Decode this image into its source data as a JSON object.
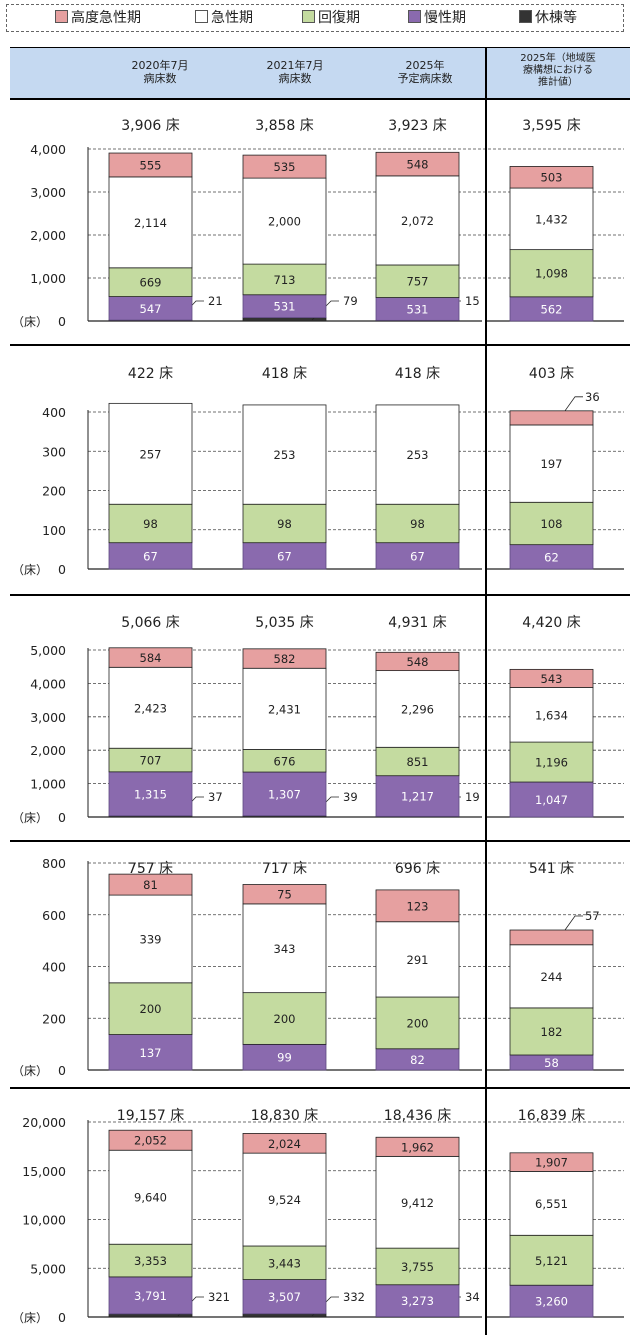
{
  "legend": [
    {
      "label": "高度急性期",
      "color": "#e6a0a0"
    },
    {
      "label": "急性期",
      "color": "#ffffff"
    },
    {
      "label": "回復期",
      "color": "#c4dba0"
    },
    {
      "label": "慢性期",
      "color": "#8a6aae"
    },
    {
      "label": "休棟等",
      "color": "#333333"
    }
  ],
  "header": {
    "col1": [
      "2020年7月",
      "病床数"
    ],
    "col2": [
      "2021年7月",
      "病床数"
    ],
    "col3": [
      "2025年",
      "予定病床数"
    ],
    "col4": [
      "2025年（地域医",
      "療構想における",
      "推計値）"
    ]
  },
  "unit_label": "（床）",
  "total_suffix": "床",
  "chart_data": [
    {
      "type": "bar",
      "stacked": true,
      "categories": [
        "2020年7月病床数",
        "2021年7月病床数",
        "2025年予定病床数",
        "2025年（地域医療構想における推計値）"
      ],
      "series": [
        {
          "name": "休棟等",
          "values": [
            21,
            79,
            15,
            0
          ]
        },
        {
          "name": "慢性期",
          "values": [
            547,
            531,
            531,
            562
          ]
        },
        {
          "name": "回復期",
          "values": [
            669,
            713,
            757,
            1098
          ]
        },
        {
          "name": "急性期",
          "values": [
            2114,
            2000,
            2072,
            1432
          ]
        },
        {
          "name": "高度急性期",
          "values": [
            555,
            535,
            548,
            503
          ]
        }
      ],
      "totals": [
        "3,906",
        "3,858",
        "3,923",
        "3,595"
      ],
      "yticks": [
        0,
        1000,
        2000,
        3000,
        4000
      ],
      "ytick_labels": [
        "0",
        "1,000",
        "2,000",
        "3,000",
        "4,000"
      ],
      "ylim": [
        0,
        4000
      ]
    },
    {
      "type": "bar",
      "stacked": true,
      "categories": [
        "2020年7月病床数",
        "2021年7月病床数",
        "2025年予定病床数",
        "2025年（地域医療構想における推計値）"
      ],
      "series": [
        {
          "name": "休棟等",
          "values": [
            0,
            0,
            0,
            0
          ]
        },
        {
          "name": "慢性期",
          "values": [
            67,
            67,
            67,
            62
          ]
        },
        {
          "name": "回復期",
          "values": [
            98,
            98,
            98,
            108
          ]
        },
        {
          "name": "急性期",
          "values": [
            257,
            253,
            253,
            197
          ]
        },
        {
          "name": "高度急性期",
          "values": [
            0,
            0,
            0,
            36
          ]
        }
      ],
      "totals": [
        "422",
        "418",
        "418",
        "403"
      ],
      "yticks": [
        0,
        100,
        200,
        300,
        400
      ],
      "ytick_labels": [
        "0",
        "100",
        "200",
        "300",
        "400"
      ],
      "ylim": [
        0,
        450
      ]
    },
    {
      "type": "bar",
      "stacked": true,
      "categories": [
        "2020年7月病床数",
        "2021年7月病床数",
        "2025年予定病床数",
        "2025年（地域医療構想における推計値）"
      ],
      "series": [
        {
          "name": "休棟等",
          "values": [
            37,
            39,
            19,
            0
          ]
        },
        {
          "name": "慢性期",
          "values": [
            1315,
            1307,
            1217,
            1047
          ]
        },
        {
          "name": "回復期",
          "values": [
            707,
            676,
            851,
            1196
          ]
        },
        {
          "name": "急性期",
          "values": [
            2423,
            2431,
            2296,
            1634
          ]
        },
        {
          "name": "高度急性期",
          "values": [
            584,
            582,
            548,
            543
          ]
        }
      ],
      "totals": [
        "5,066",
        "5,035",
        "4,931",
        "4,420"
      ],
      "yticks": [
        0,
        1000,
        2000,
        3000,
        4000,
        5000
      ],
      "ytick_labels": [
        "0",
        "1,000",
        "2,000",
        "3,000",
        "4,000",
        "5,000"
      ],
      "ylim": [
        0,
        5000
      ]
    },
    {
      "type": "bar",
      "stacked": true,
      "categories": [
        "2020年7月病床数",
        "2021年7月病床数",
        "2025年予定病床数",
        "2025年（地域医療構想における推計値）"
      ],
      "series": [
        {
          "name": "休棟等",
          "values": [
            0,
            0,
            0,
            0
          ]
        },
        {
          "name": "慢性期",
          "values": [
            137,
            99,
            82,
            58
          ]
        },
        {
          "name": "回復期",
          "values": [
            200,
            200,
            200,
            182
          ]
        },
        {
          "name": "急性期",
          "values": [
            339,
            343,
            291,
            244
          ]
        },
        {
          "name": "高度急性期",
          "values": [
            81,
            75,
            123,
            57
          ]
        }
      ],
      "totals": [
        "757",
        "717",
        "696",
        "541"
      ],
      "yticks": [
        0,
        200,
        400,
        600,
        800
      ],
      "ytick_labels": [
        "0",
        "200",
        "400",
        "600",
        "800"
      ],
      "ylim": [
        0,
        800
      ]
    },
    {
      "type": "bar",
      "stacked": true,
      "categories": [
        "2020年7月病床数",
        "2021年7月病床数",
        "2025年予定病床数",
        "2025年（地域医療構想における推計値）"
      ],
      "series": [
        {
          "name": "休棟等",
          "values": [
            321,
            332,
            34,
            0
          ]
        },
        {
          "name": "慢性期",
          "values": [
            3791,
            3507,
            3273,
            3260
          ]
        },
        {
          "name": "回復期",
          "values": [
            3353,
            3443,
            3755,
            5121
          ]
        },
        {
          "name": "急性期",
          "values": [
            9640,
            9524,
            9412,
            6551
          ]
        },
        {
          "name": "高度急性期",
          "values": [
            2052,
            2024,
            1962,
            1907
          ]
        }
      ],
      "totals": [
        "19,157",
        "18,830",
        "18,436",
        "16,839"
      ],
      "yticks": [
        0,
        5000,
        10000,
        15000,
        20000
      ],
      "ytick_labels": [
        "0",
        "5,000",
        "10,000",
        "15,000",
        "20,000"
      ],
      "ylim": [
        0,
        20000
      ]
    }
  ]
}
